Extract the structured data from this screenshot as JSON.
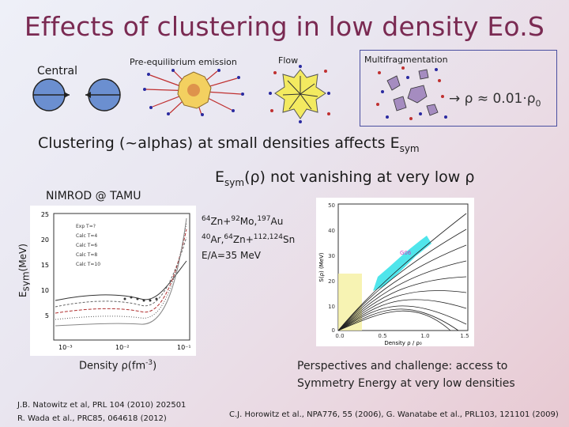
{
  "title": "Effects of clustering in low density Eo.S",
  "diagram": {
    "central": "Central",
    "pre_equilibrium": "Pre-equilibrium emission",
    "flow": "Flow",
    "multifragmentation": "Multifragmentation",
    "rho_arrow": "→ ρ ≈ 0.01·ρ",
    "rho_sub": "0"
  },
  "clustering_text": "Clustering (~alphas) at small densities affects E",
  "clustering_sub": "sym",
  "esym_note_pre": "E",
  "esym_note_sub": "sym",
  "esym_note_post": "(ρ) not vanishing at very low ρ",
  "nimrod": "NIMROD @ TAMU",
  "reaction": {
    "line1": [
      "64",
      "Zn+",
      "92",
      "Mo,",
      "197",
      "Au"
    ],
    "line2": [
      "40",
      "Ar,",
      "64",
      "Zn+",
      "112,124",
      "Sn"
    ],
    "line3": "E/A=35 MeV"
  },
  "left_plot": {
    "ylabel_pre": "E",
    "ylabel_sub": "sym",
    "ylabel_post": "(MeV)",
    "yticks": [
      "25",
      "20",
      "15",
      "10",
      "5"
    ],
    "xticks": [
      "10⁻³",
      "10⁻²",
      "10⁻¹"
    ],
    "legend": [
      "Exp T=?",
      "Calc T=4",
      "Calc T=6",
      "Calc T=8",
      "Calc T=10"
    ],
    "xlabel": "Density ρ(fm",
    "xlabel_sup": "-3",
    "xlabel_post": ")"
  },
  "right_plot": {
    "ylabel": "S(ρ) (MeV)",
    "yticks": [
      "50",
      "40",
      "30",
      "20",
      "10",
      "0"
    ],
    "xticks": [
      "0.0",
      "0.5",
      "1.0",
      "1.5"
    ],
    "xlabel": "Density ρ / ρ₀",
    "annotation": "G06"
  },
  "perspectives": [
    "Perspectives and challenge: access to",
    "Symmetry Energy at very low densities"
  ],
  "ref_left": [
    "J.B. Natowitz et al, PRL 104 (2010) 202501",
    "R. Wada et al., PRC85, 064618 (2012)"
  ],
  "ref_right": "C.J. Horowitz et al., NPA776, 55 (2006), G. Wanatabe et al., PRL103, 121101 (2009)",
  "colors": {
    "title": "#7a2a52",
    "nucleus": "#6b8fd0",
    "fireball": "#f3e06a",
    "fragment": "#a58cc0",
    "band": "#30e0e8"
  }
}
